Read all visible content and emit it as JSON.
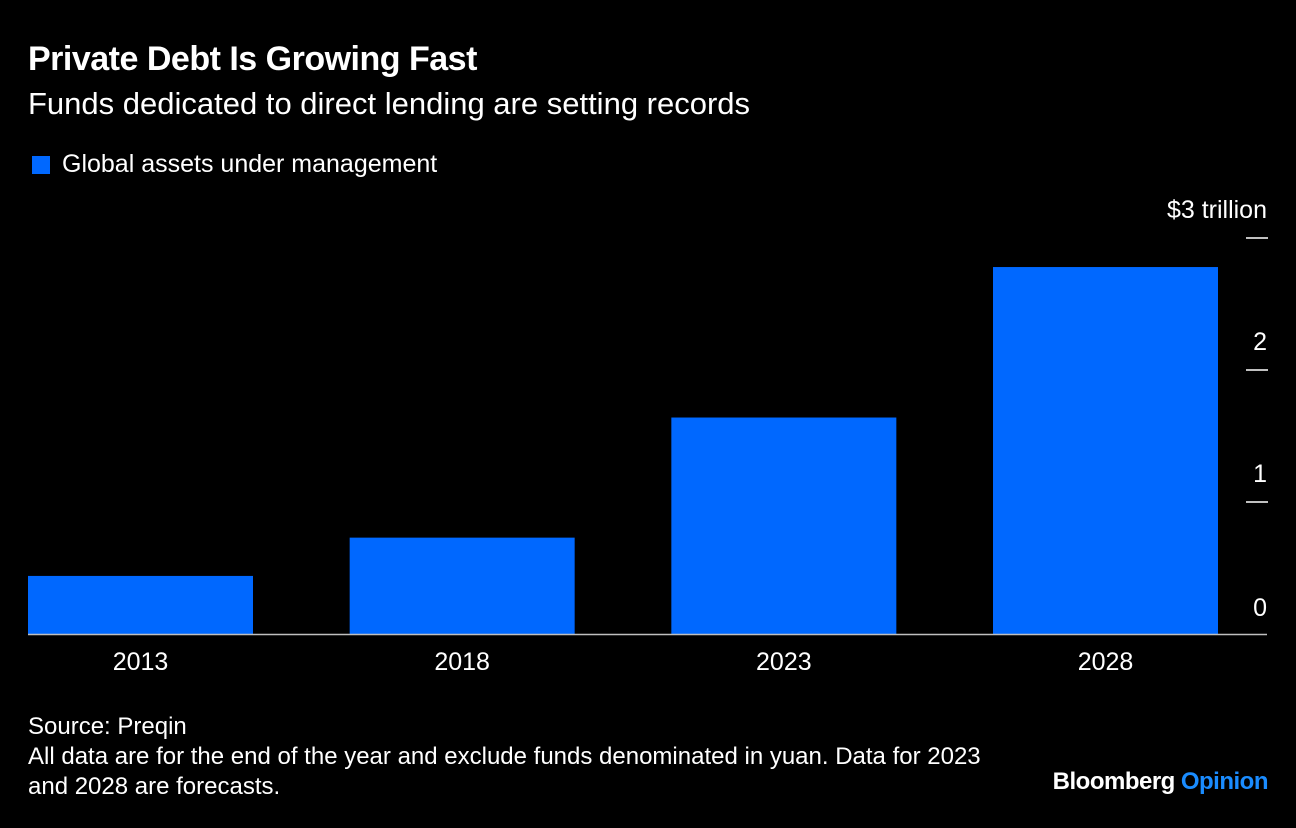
{
  "header": {
    "title": "Private Debt Is Growing Fast",
    "subtitle": "Funds dedicated to direct lending are setting records"
  },
  "footer": {
    "source": "Source: Preqin",
    "note": "All data are for the end of the year and exclude funds denominated in yuan. Data for 2023 and 2028 are forecasts.",
    "brand_primary": "Bloomberg",
    "brand_secondary": "Opinion"
  },
  "colors": {
    "background": "#000000",
    "bar": "#0068ff",
    "text": "#ffffff",
    "brand_accent": "#1a8cff"
  },
  "chart_data": {
    "type": "bar",
    "categories": [
      "2013",
      "2018",
      "2023",
      "2028"
    ],
    "series": [
      {
        "name": "Global assets under management",
        "values": [
          0.44,
          0.73,
          1.64,
          2.78
        ]
      }
    ],
    "ylim": [
      0,
      3
    ],
    "yticks": [
      0,
      1,
      2,
      3
    ],
    "ytick_labels": [
      "0",
      "1",
      "2",
      "$3 trillion"
    ],
    "legend_position": "top-left",
    "grid": false
  }
}
